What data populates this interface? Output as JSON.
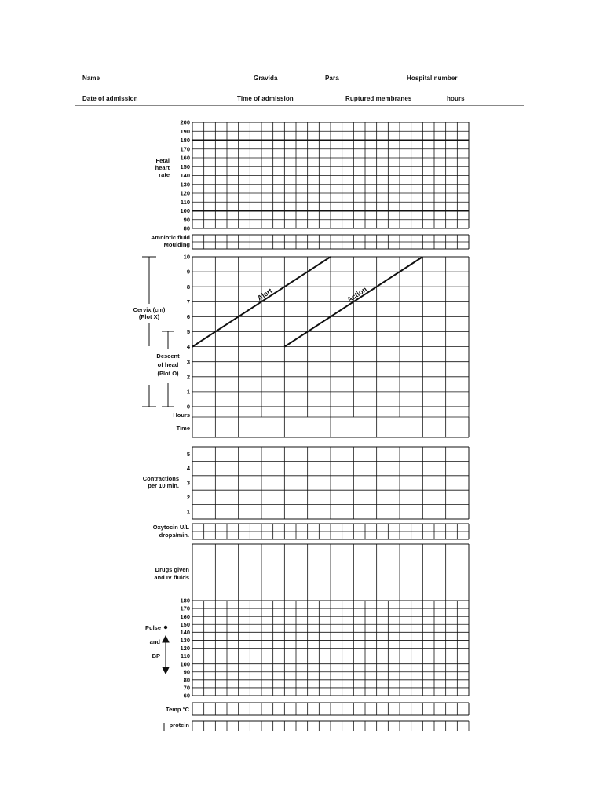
{
  "header": {
    "row1": {
      "name": "Name",
      "gravida": "Gravida",
      "para": "Para",
      "hospital_number": "Hospital number"
    },
    "row2": {
      "date_of_admission": "Date of admission",
      "time_of_admission": "Time of admission",
      "ruptured_membranes": "Ruptured membranes",
      "hours": "hours"
    }
  },
  "fetal_heart_rate": {
    "label_lines": [
      "Fetal",
      "heart",
      "rate"
    ],
    "scale": [
      "200",
      "190",
      "180",
      "170",
      "160",
      "150",
      "140",
      "130",
      "120",
      "110",
      "100",
      "90",
      "80"
    ],
    "reference_lines": [
      180,
      100
    ]
  },
  "amniotic_fluid": {
    "label": "Amniotic fluid"
  },
  "moulding": {
    "label": "Moulding"
  },
  "cervix": {
    "label_lines": [
      "Cervix (cm)",
      "(Plot X)"
    ],
    "scale": [
      "10",
      "9",
      "8",
      "7",
      "6",
      "5",
      "4",
      "3",
      "2",
      "1",
      "0"
    ],
    "alert_label": "Alert",
    "action_label": "Action",
    "alert_line": {
      "from": [
        0,
        4
      ],
      "to": [
        6,
        10
      ]
    },
    "action_line": {
      "from": [
        4,
        4
      ],
      "to": [
        10,
        10
      ]
    }
  },
  "descent": {
    "label_lines": [
      "Descent",
      "of head",
      "(Plot O)"
    ]
  },
  "hours": {
    "label": "Hours"
  },
  "time": {
    "label": "Time"
  },
  "contractions": {
    "label_lines": [
      "Contractions",
      "per 10 min."
    ],
    "scale": [
      "5",
      "4",
      "3",
      "2",
      "1"
    ]
  },
  "oxytocin": {
    "label_lines": [
      "Oxytocin U/L",
      "drops/min."
    ]
  },
  "drugs": {
    "label_lines": [
      "Drugs given",
      "and IV fluids"
    ]
  },
  "pulse_bp": {
    "pulse_label": "Pulse",
    "and_label": "and",
    "bp_label": "BP",
    "scale": [
      "180",
      "170",
      "160",
      "150",
      "140",
      "130",
      "120",
      "110",
      "100",
      "90",
      "80",
      "70",
      "60"
    ]
  },
  "temp": {
    "label": "Temp °C"
  },
  "protein": {
    "label": "protein"
  }
}
